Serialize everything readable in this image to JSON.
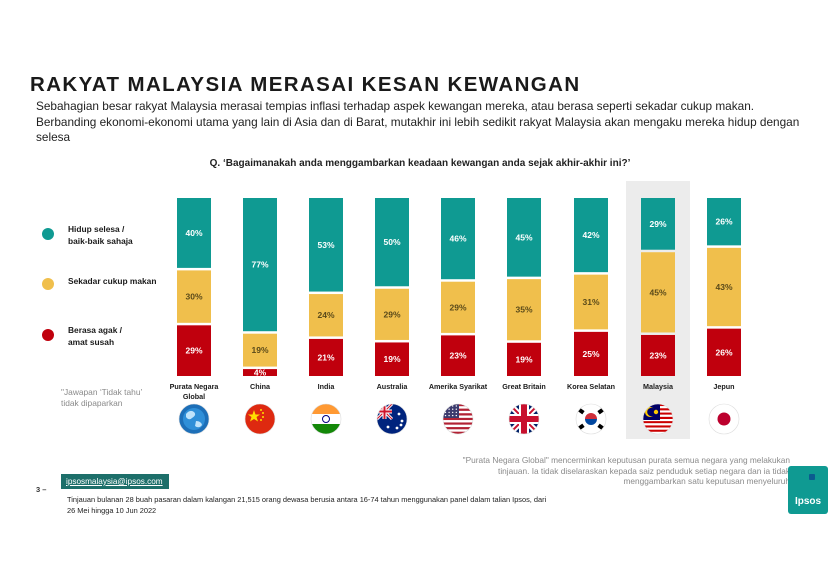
{
  "title": "RAKYAT MALAYSIA MERASAI KESAN KEWANGAN",
  "subtitle": "Sebahagian besar rakyat Malaysia merasai tempias inflasi terhadap aspek kewangan mereka, atau berasa seperti sekadar cukup makan. Berbanding ekonomi-ekonomi utama yang lain di Asia dan di Barat, mutakhir ini lebih sedikit rakyat Malaysia akan mengaku mereka hidup dengan selesa",
  "question": "Q. ‘Bagaimanakah anda menggambarkan keadaan kewangan anda sejak akhir-akhir ini?’",
  "legend": [
    {
      "label_line1": "Hidup selesa /",
      "label_line2": "baik-baik sahaja",
      "color": "#0f9a92"
    },
    {
      "label_line1": "Sekadar cukup makan",
      "label_line2": "",
      "color": "#f0bf4c"
    },
    {
      "label_line1": "Berasa agak /",
      "label_line2": "amat susah",
      "color": "#c0000d"
    }
  ],
  "chart_data": {
    "type": "bar",
    "stacked": true,
    "categories": [
      "Purata Negara Global",
      "China",
      "India",
      "Australia",
      "Amerika Syarikat",
      "Great Britain",
      "Korea Selatan",
      "Malaysia",
      "Jepun"
    ],
    "category_lines": [
      [
        "Purata Negara",
        "Global"
      ],
      [
        "China"
      ],
      [
        "India"
      ],
      [
        "Australia"
      ],
      [
        "Amerika Syarikat"
      ],
      [
        "Great Britain"
      ],
      [
        "Korea Selatan"
      ],
      [
        "Malaysia"
      ],
      [
        "Jepun"
      ]
    ],
    "series": [
      {
        "name": "Hidup selesa / baik-baik sahaja",
        "color": "#0f9a92",
        "values": [
          40,
          77,
          53,
          50,
          46,
          45,
          42,
          29,
          26
        ]
      },
      {
        "name": "Sekadar cukup makan",
        "color": "#f0bf4c",
        "values": [
          30,
          19,
          24,
          29,
          29,
          35,
          31,
          45,
          43
        ]
      },
      {
        "name": "Berasa agak / amat susah",
        "color": "#c0000d",
        "values": [
          29,
          4,
          21,
          19,
          23,
          19,
          25,
          23,
          26
        ]
      }
    ],
    "highlight": "Malaysia",
    "value_suffix": "%"
  },
  "flags": [
    "globe-icon",
    "china-flag-icon",
    "india-flag-icon",
    "australia-flag-icon",
    "usa-flag-icon",
    "uk-flag-icon",
    "south-korea-flag-icon",
    "malaysia-flag-icon",
    "japan-flag-icon"
  ],
  "note_left": "\"Jawapan ‘Tidak tahu’ tidak dipaparkan",
  "note_right": "\"Purata Negara Global\" mencerminkan keputusan purata semua negara yang melakukan tinjauan. Ia tidak diselaraskan kepada saiz penduduk setiap negara dan ia tidak menggambarkan satu keputusan menyeluruh",
  "email": "ipsosmalaysia@ipsos.com",
  "page_number": "3 –",
  "footnote": "Tinjauan bulanan 28 buah pasaran dalam kalangan 21,515 orang dewasa berusia antara 16-74 tahun menggunakan panel dalam talian Ipsos, dari 26 Mei hingga 10 Jun 2022",
  "logo_text": "Ipsos"
}
